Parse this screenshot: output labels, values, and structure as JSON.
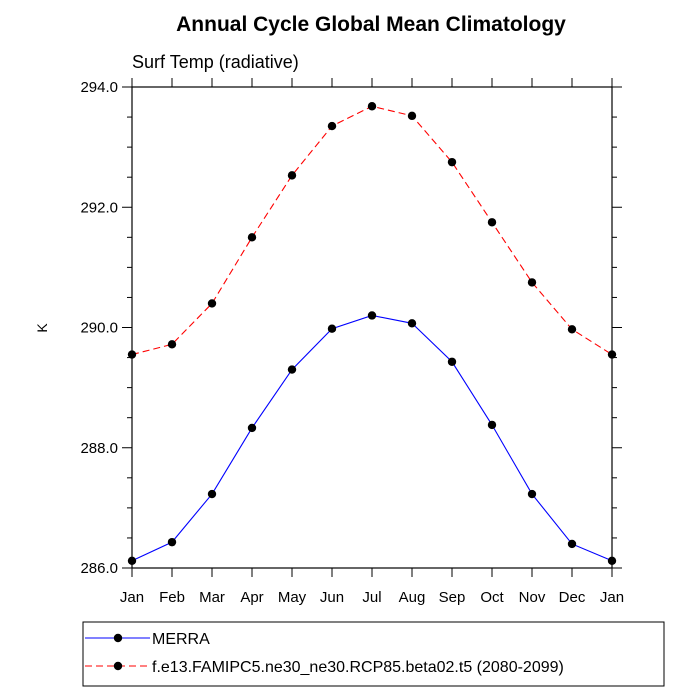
{
  "chart_data": {
    "type": "line",
    "title": "Annual Cycle Global Mean Climatology",
    "subtitle": "Surf Temp (radiative)",
    "xlabel": "",
    "ylabel": "K",
    "categories": [
      "Jan",
      "Feb",
      "Mar",
      "Apr",
      "May",
      "Jun",
      "Jul",
      "Aug",
      "Sep",
      "Oct",
      "Nov",
      "Dec",
      "Jan"
    ],
    "ylim": [
      286.0,
      294.0
    ],
    "yticks": [
      286.0,
      288.0,
      290.0,
      292.0,
      294.0
    ],
    "ytick_labels": [
      "286.0",
      "288.0",
      "290.0",
      "292.0",
      "294.0"
    ],
    "grid": false,
    "legend_position": "bottom-left",
    "series": [
      {
        "name": "MERRA",
        "color": "#0000ff",
        "dash": "solid",
        "marker": "circle",
        "values": [
          286.12,
          286.43,
          287.23,
          288.33,
          289.3,
          289.98,
          290.2,
          290.07,
          289.43,
          288.38,
          287.23,
          286.4,
          286.12
        ]
      },
      {
        "name": "f.e13.FAMIPC5.ne30_ne30.RCP85.beta02.t5 (2080-2099)",
        "color": "#ff0000",
        "dash": "dashed",
        "marker": "circle",
        "values": [
          289.55,
          289.72,
          290.4,
          291.5,
          292.53,
          293.35,
          293.68,
          293.52,
          292.75,
          291.75,
          290.75,
          289.97,
          289.55
        ]
      }
    ]
  }
}
